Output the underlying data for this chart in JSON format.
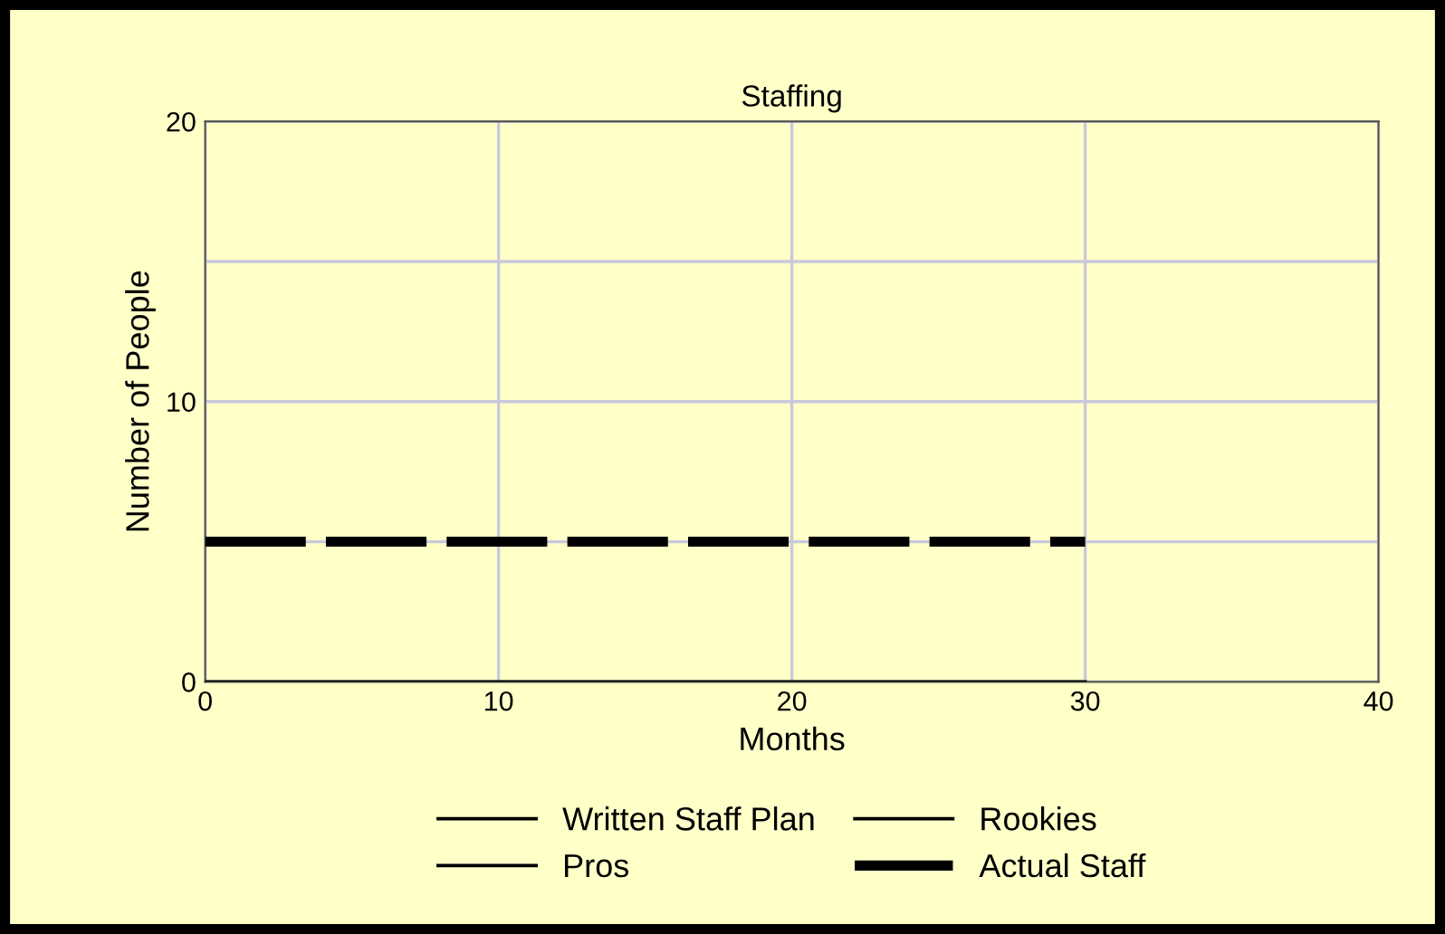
{
  "chart_data": {
    "type": "line",
    "title": "Staffing",
    "xlabel": "Months",
    "ylabel": "Number of People",
    "x": [
      0,
      30
    ],
    "series": [
      {
        "name": "Written Staff Plan",
        "color": "#000000",
        "values": [
          null,
          null
        ]
      },
      {
        "name": "Rookies",
        "color": "#000000",
        "values": [
          0,
          0
        ]
      },
      {
        "name": "Pros",
        "color": "#000000",
        "values": [
          null,
          null
        ]
      },
      {
        "name": "Actual Staff",
        "color": "#000000",
        "values": [
          5,
          5
        ],
        "line_style": "dashed"
      }
    ],
    "xlim": [
      0,
      40
    ],
    "xticks": [
      0,
      10,
      20,
      30,
      40
    ],
    "ylim": [
      0,
      20
    ],
    "yticks": [
      0,
      {
        "value": 5,
        "label": null
      },
      10,
      {
        "value": 15,
        "label": null
      },
      20
    ],
    "grid": true,
    "legend": "bottom"
  }
}
